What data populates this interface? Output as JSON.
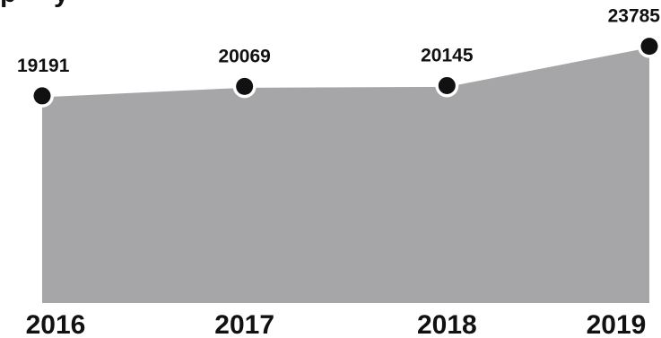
{
  "chart_data": {
    "type": "area",
    "categories": [
      "2016",
      "2017",
      "2018",
      "2019"
    ],
    "values": [
      19191,
      20069,
      20145,
      23785
    ],
    "data_labels": [
      "19191",
      "20069",
      "20145",
      "23785"
    ],
    "title": "",
    "xlabel": "",
    "ylabel": "",
    "ylim": [
      0,
      24500
    ],
    "grid": false,
    "legend": "none",
    "colors": {
      "area": "#a6a6a9",
      "line": "#ffffff",
      "marker": "#111111",
      "text": "#111111"
    }
  }
}
